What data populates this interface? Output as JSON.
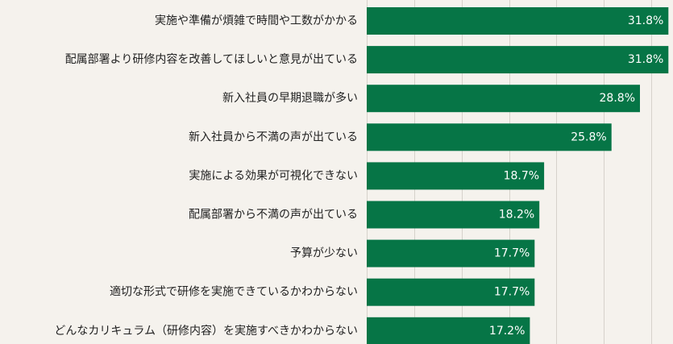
{
  "chart_data": {
    "type": "bar",
    "orientation": "horizontal",
    "title": "",
    "xlabel": "",
    "ylabel": "",
    "grid": true,
    "legend": "none",
    "xlim": [
      0,
      32
    ],
    "gridlines": [
      0,
      5,
      10,
      15,
      20,
      25,
      30
    ],
    "categories": [
      "実施や準備が煩雑で時間や工数がかかる",
      "配属部署より研修内容を改善してほしいと意見が出ている",
      "新入社員の早期退職が多い",
      "新入社員から不満の声が出ている",
      "実施による効果が可視化できない",
      "配属部署から不満の声が出ている",
      "予算が少ない",
      "適切な形式で研修を実施できているかわからない",
      "どんなカリキュラム（研修内容）を実施すべきかわからない"
    ],
    "values": [
      31.8,
      31.8,
      28.8,
      25.8,
      18.7,
      18.2,
      17.7,
      17.7,
      17.2
    ],
    "value_labels": [
      "31.8%",
      "31.8%",
      "28.8%",
      "25.8%",
      "18.7%",
      "18.2%",
      "17.7%",
      "17.7%",
      "17.2%"
    ],
    "colors": {
      "bar": "#067546",
      "background": "#f5f2ed",
      "grid": "#d6d2cb",
      "label": "#222222",
      "value": "#ffffff"
    }
  }
}
